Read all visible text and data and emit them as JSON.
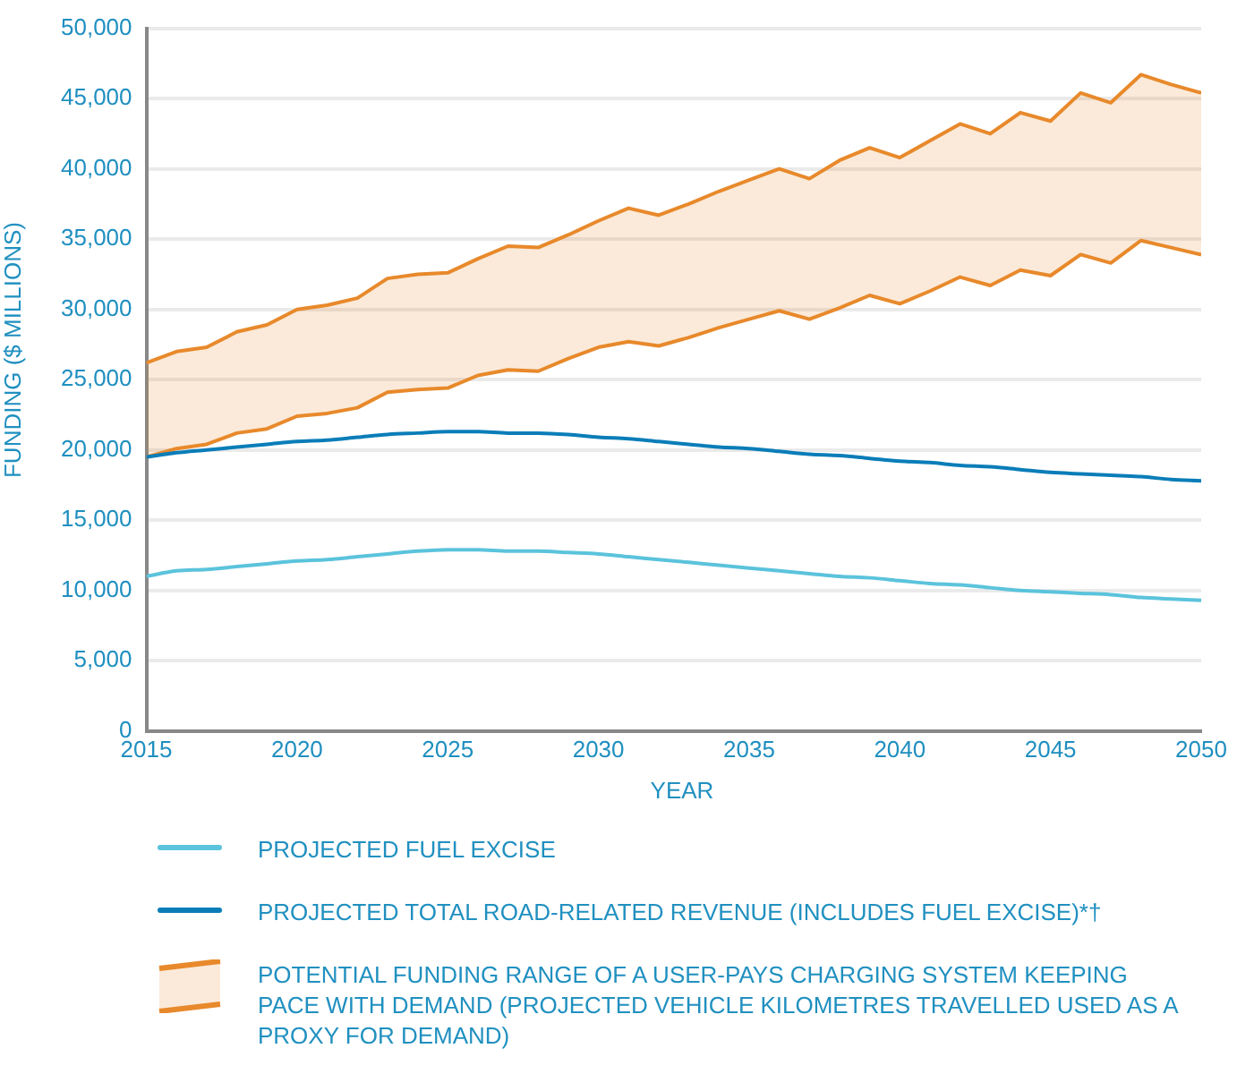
{
  "chart_data": {
    "type": "line",
    "xlabel": "YEAR",
    "ylabel": "FUNDING ($ MILLIONS)",
    "x": [
      2015,
      2016,
      2017,
      2018,
      2019,
      2020,
      2021,
      2022,
      2023,
      2024,
      2025,
      2026,
      2027,
      2028,
      2029,
      2030,
      2031,
      2032,
      2033,
      2034,
      2035,
      2036,
      2037,
      2038,
      2039,
      2040,
      2041,
      2042,
      2043,
      2044,
      2045,
      2046,
      2047,
      2048,
      2049,
      2050
    ],
    "xlim": [
      2015,
      2050
    ],
    "xticks": [
      2015,
      2020,
      2025,
      2030,
      2035,
      2040,
      2045,
      2050
    ],
    "ylim": [
      0,
      50000
    ],
    "yticks": [
      0,
      {
        "value": 5000,
        "label": "5,000"
      },
      {
        "value": 10000,
        "label": "10,000"
      },
      {
        "value": 15000,
        "label": "15,000"
      },
      {
        "value": 20000,
        "label": "20,000"
      },
      {
        "value": 25000,
        "label": "25,000"
      },
      {
        "value": 30000,
        "label": "30,000"
      },
      {
        "value": 35000,
        "label": "35,000"
      },
      {
        "value": 40000,
        "label": "40,000"
      },
      {
        "value": 45000,
        "label": "45,000"
      },
      {
        "value": 50000,
        "label": "50,000"
      }
    ],
    "grid": "y",
    "legend": "bottom",
    "series": [
      {
        "name": "PROJECTED FUEL EXCISE",
        "color": "#5bc3dc",
        "values": [
          11000,
          11400,
          11500,
          11700,
          11900,
          12100,
          12200,
          12400,
          12600,
          12800,
          12900,
          12900,
          12800,
          12800,
          12700,
          12600,
          12400,
          12200,
          12000,
          11800,
          11600,
          11400,
          11200,
          11000,
          10900,
          10700,
          10500,
          10400,
          10200,
          10000,
          9900,
          9800,
          9700,
          9500,
          9400,
          9300
        ]
      },
      {
        "name": "PROJECTED TOTAL ROAD-RELATED REVENUE (INCLUDES FUEL EXCISE)*†",
        "color": "#0a7db8",
        "values": [
          19500,
          19800,
          20000,
          20200,
          20400,
          20600,
          20700,
          20900,
          21100,
          21200,
          21300,
          21300,
          21200,
          21200,
          21100,
          20900,
          20800,
          20600,
          20400,
          20200,
          20100,
          19900,
          19700,
          19600,
          19400,
          19200,
          19100,
          18900,
          18800,
          18600,
          18400,
          18300,
          18200,
          18100,
          17900,
          17800
        ]
      },
      {
        "type": "line",
        "color": "#e8892b",
        "values": [
          19500,
          20100,
          20400,
          21200,
          21500,
          22400,
          22600,
          23000,
          24100,
          24300,
          24400,
          25300,
          25700,
          25600,
          26500,
          27300,
          27700,
          27400,
          28000,
          28700,
          29300,
          29900,
          29300,
          30100,
          31000,
          30400,
          31300,
          32300,
          31700,
          32800,
          32400,
          33900,
          33300,
          34900,
          34400,
          33900
        ]
      },
      {
        "name": "POTENTIAL FUNDING RANGE OF A USER-PAYS CHARGING SYSTEM KEEPING PACE WITH DEMAND (PROJECTED VEHICLE KILOMETRES TRAVELLED USED AS A PROXY FOR DEMAND)",
        "type": "area",
        "color": "#e8892b",
        "values": [
          26200,
          27000,
          27300,
          28400,
          28900,
          30000,
          30300,
          30800,
          32200,
          32500,
          32600,
          33600,
          34500,
          34400,
          35300,
          36300,
          37200,
          36700,
          37500,
          38400,
          39200,
          40000,
          39300,
          40600,
          41500,
          40800,
          42000,
          43200,
          42500,
          44000,
          43400,
          45400,
          44700,
          46700,
          46000,
          45400
        ]
      }
    ]
  }
}
